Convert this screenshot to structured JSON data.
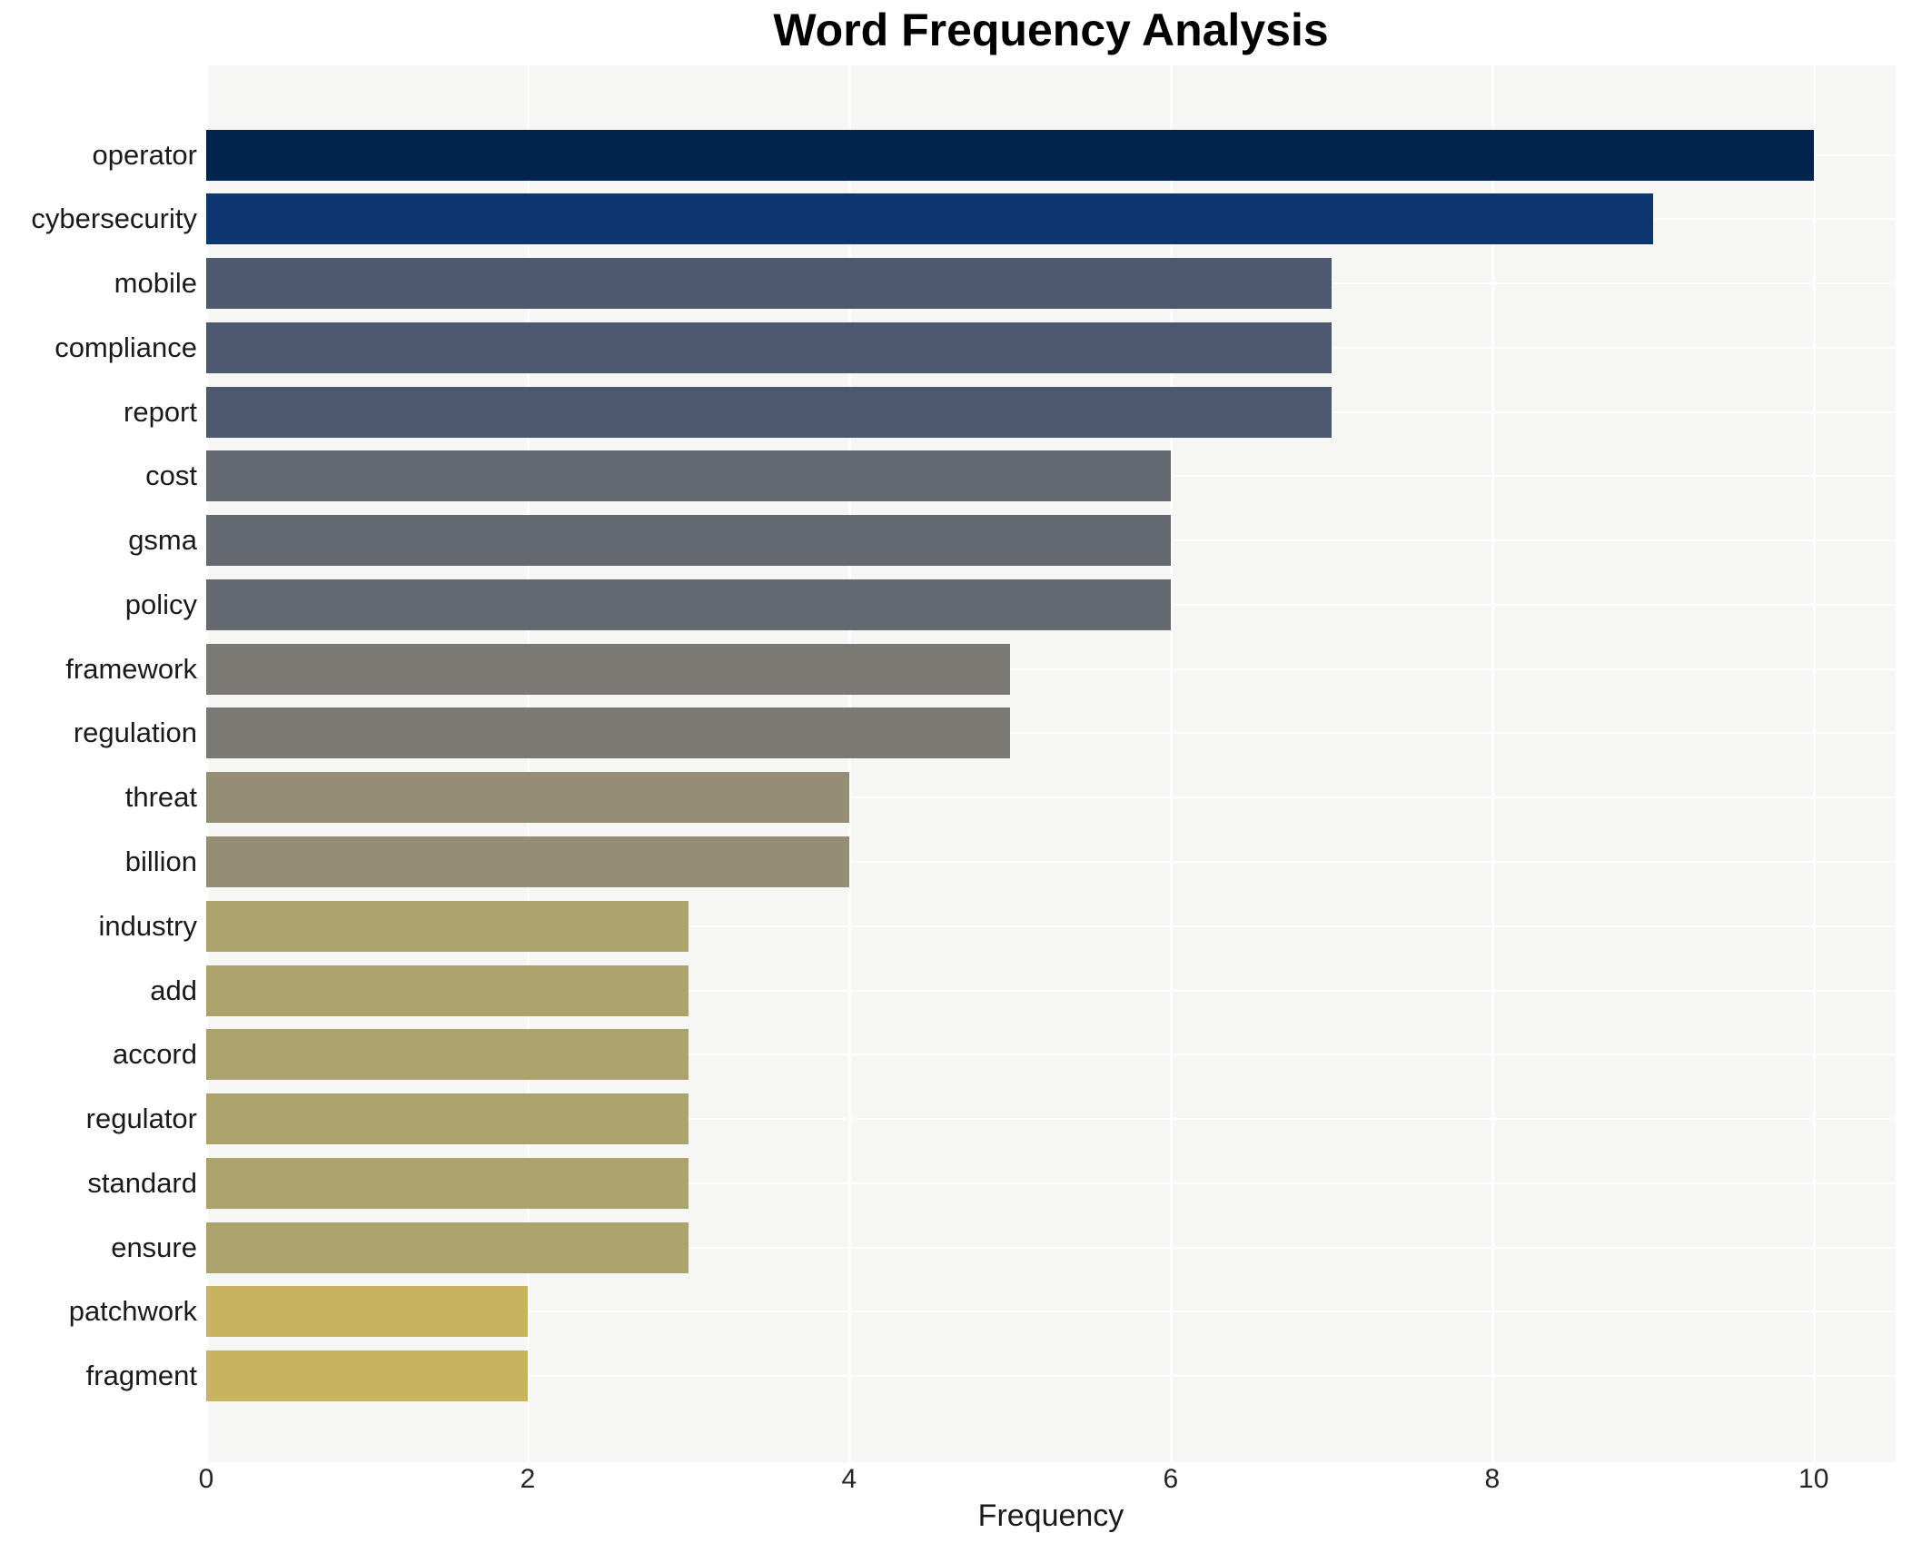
{
  "chart_data": {
    "type": "bar",
    "orientation": "horizontal",
    "title": "Word Frequency Analysis",
    "xlabel": "Frequency",
    "ylabel": "",
    "categories": [
      "operator",
      "cybersecurity",
      "mobile",
      "compliance",
      "report",
      "cost",
      "gsma",
      "policy",
      "framework",
      "regulation",
      "threat",
      "billion",
      "industry",
      "add",
      "accord",
      "regulator",
      "standard",
      "ensure",
      "patchwork",
      "fragment"
    ],
    "values": [
      10,
      9,
      7,
      7,
      7,
      6,
      6,
      6,
      5,
      5,
      4,
      4,
      3,
      3,
      3,
      3,
      3,
      3,
      2,
      2
    ],
    "bar_colors": [
      "#02244e",
      "#0d3570",
      "#4d576e",
      "#4d576e",
      "#4d576e",
      "#64686f",
      "#64686f",
      "#64686f",
      "#7b7974",
      "#7b7974",
      "#968e74",
      "#968e74",
      "#aba26c",
      "#aba26c",
      "#aba26c",
      "#aba26c",
      "#aba26c",
      "#aba26c",
      "#c8b460",
      "#c8b460"
    ],
    "colormap": "cividis-reversed-by-value",
    "x_ticks": [
      0,
      2,
      4,
      6,
      8,
      10
    ],
    "xlim": [
      0,
      10.51
    ],
    "grid": true,
    "grid_color": "#ffffff",
    "plot_background": "#f6f6f5",
    "page_background": "#ffffff",
    "legend": "none"
  }
}
